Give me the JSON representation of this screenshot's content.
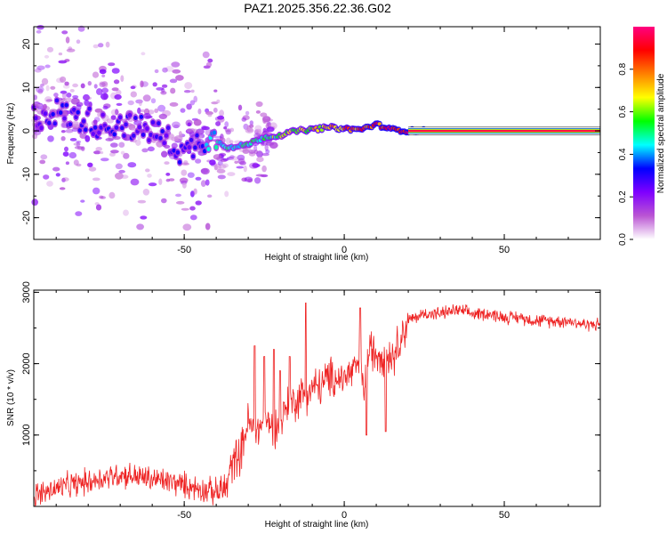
{
  "figure": {
    "title": "PAZ1.2025.356.22.36.G02"
  },
  "chart_data": [
    {
      "type": "heatmap",
      "name": "spectrogram",
      "title": "PAZ1.2025.356.22.36.G02",
      "xlabel": "Height of straight line (km)",
      "ylabel": "Frequency (Hz)",
      "xlim": [
        -97,
        80
      ],
      "ylim": [
        -25,
        24
      ],
      "xticks": [
        -50,
        0,
        50
      ],
      "yticks": [
        -20,
        -10,
        0,
        10,
        20
      ],
      "colorbar": {
        "label": "Normalized spectral amplitude",
        "range": [
          0,
          1
        ],
        "ticks": [
          0.0,
          0.2,
          0.4,
          0.6,
          0.8
        ],
        "colormap": [
          "#ffffff",
          "#ba55d3",
          "#7f00ff",
          "#0000ff",
          "#00ffff",
          "#00ff00",
          "#ffff00",
          "#ff8000",
          "#ff0000",
          "#ff0080"
        ]
      },
      "trend": {
        "x": [
          -97,
          -90,
          -85,
          -80,
          -75,
          -70,
          -65,
          -60,
          -55,
          -50,
          -45,
          -42,
          -40,
          -37,
          -35,
          -30,
          -25,
          -20,
          -15,
          -10,
          -5,
          0,
          5,
          10,
          15,
          20,
          30,
          40,
          50,
          60,
          70,
          80
        ],
        "y": [
          3.0,
          4.5,
          3.0,
          2.5,
          1.0,
          2.0,
          0.5,
          0.0,
          -2.0,
          -5.5,
          -2.0,
          -1.5,
          -2.0,
          -3.5,
          -4.0,
          -3.0,
          -1.5,
          -1.0,
          0.0,
          0.3,
          0.8,
          0.5,
          0.3,
          1.5,
          0.3,
          0.0,
          0.0,
          0.0,
          0.0,
          0.0,
          0.0,
          0.0
        ],
        "amplitude": [
          0.25,
          0.3,
          0.3,
          0.3,
          0.3,
          0.3,
          0.3,
          0.3,
          0.3,
          0.3,
          0.3,
          0.45,
          0.45,
          0.5,
          0.5,
          0.5,
          0.55,
          0.6,
          0.65,
          0.7,
          0.75,
          0.8,
          0.85,
          0.9,
          0.9,
          0.95,
          1.0,
          1.0,
          1.0,
          1.0,
          1.0,
          1.0
        ]
      }
    },
    {
      "type": "line",
      "name": "snr",
      "xlabel": "Height of straight line (km)",
      "ylabel": "SNR (10 * v/v)",
      "xlim": [
        -97,
        80
      ],
      "ylim": [
        0,
        3030
      ],
      "xticks": [
        -50,
        0,
        50
      ],
      "yticks": [
        1000,
        2000,
        3000
      ],
      "series": [
        {
          "name": "SNR",
          "color": "#ee2222",
          "x": [
            -97,
            -90,
            -85,
            -80,
            -75,
            -70,
            -65,
            -60,
            -55,
            -50,
            -45,
            -40,
            -37,
            -35,
            -32,
            -30,
            -28,
            -25,
            -22,
            -20,
            -18,
            -15,
            -12,
            -10,
            -7,
            -5,
            -2,
            0,
            3,
            5,
            6,
            7,
            8,
            10,
            12,
            15,
            18,
            20,
            25,
            30,
            35,
            40,
            45,
            50,
            55,
            60,
            65,
            70,
            75,
            80
          ],
          "y": [
            150,
            250,
            300,
            350,
            400,
            450,
            420,
            380,
            350,
            300,
            250,
            200,
            250,
            600,
            800,
            1200,
            1000,
            1200,
            1100,
            1200,
            1400,
            1500,
            1600,
            1650,
            1700,
            1800,
            1800,
            1800,
            1900,
            2050,
            1600,
            2000,
            2200,
            2150,
            2150,
            2100,
            2400,
            2600,
            2700,
            2700,
            2750,
            2700,
            2700,
            2650,
            2650,
            2600,
            2600,
            2600,
            2550,
            2550
          ],
          "spikes": [
            {
              "x": -28,
              "y": 2250
            },
            {
              "x": -25,
              "y": 2100
            },
            {
              "x": -22,
              "y": 2200
            },
            {
              "x": -20,
              "y": 1900
            },
            {
              "x": -17,
              "y": 2100
            },
            {
              "x": -12,
              "y": 2850
            },
            {
              "x": 5,
              "y": 2780
            },
            {
              "x": 7,
              "y": 1000
            },
            {
              "x": 13,
              "y": 1050
            }
          ]
        }
      ]
    }
  ]
}
